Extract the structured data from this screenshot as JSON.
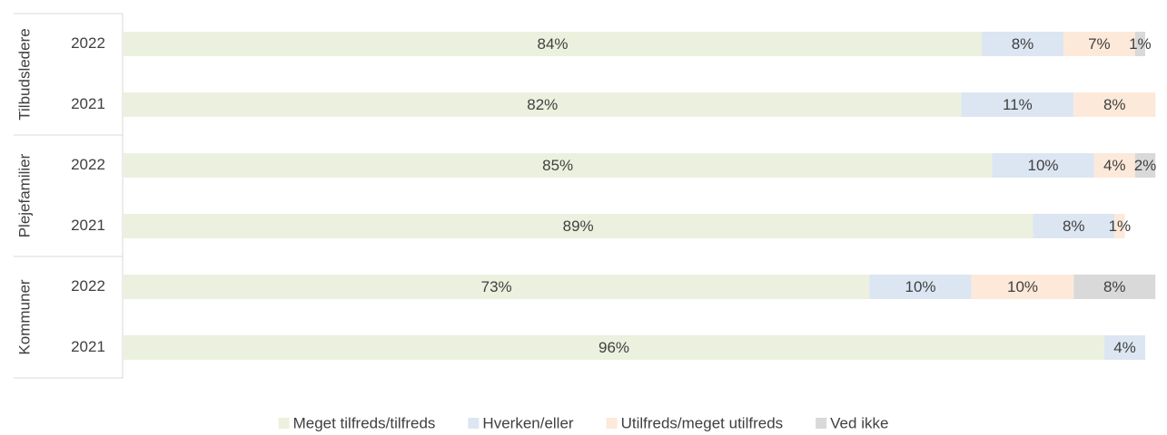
{
  "chart_data": {
    "type": "stacked-bar-horizontal",
    "groups": [
      {
        "name": "Tilbudsledere",
        "categories": [
          "2022",
          "2021"
        ]
      },
      {
        "name": "Plejefamilier",
        "categories": [
          "2022",
          "2021"
        ]
      },
      {
        "name": "Kommuner",
        "categories": [
          "2022",
          "2021"
        ]
      }
    ],
    "xlim": [
      0,
      100
    ],
    "legend": "bottom",
    "series": [
      {
        "name": "Meget tilfreds/tilfreds",
        "color": "#ebf1de",
        "values": [
          84,
          82,
          85,
          89,
          73,
          96
        ],
        "value_labels": [
          "84%",
          "82%",
          "85%",
          "89%",
          "73%",
          "96%"
        ]
      },
      {
        "name": "Hverken/eller",
        "color": "#dce6f2",
        "values": [
          8,
          11,
          10,
          8,
          10,
          4
        ],
        "value_labels": [
          "8%",
          "11%",
          "10%",
          "8%",
          "10%",
          "4%"
        ]
      },
      {
        "name": "Utilfreds/meget utilfreds",
        "color": "#fde9d9",
        "values": [
          7,
          8,
          4,
          1,
          10,
          null
        ],
        "value_labels": [
          "7%",
          "8%",
          "4%",
          "1%",
          "10%",
          null
        ]
      },
      {
        "name": "Ved ikke",
        "color": "#d9d9d9",
        "values": [
          1,
          null,
          2,
          null,
          8,
          null
        ],
        "value_labels": [
          "1%",
          null,
          "2%",
          null,
          "8%",
          null
        ]
      }
    ]
  }
}
